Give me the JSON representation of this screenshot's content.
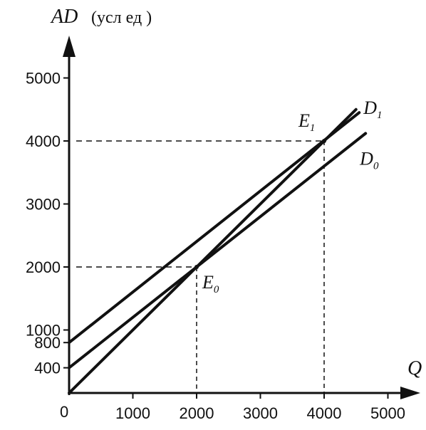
{
  "chart_data": {
    "type": "line",
    "y_axis": {
      "symbol": "AD",
      "unit": "(усл ед )"
    },
    "x_axis": {
      "symbol": "Q"
    },
    "origin_label": "0",
    "x_ticks": [
      1000,
      2000,
      3000,
      4000,
      5000
    ],
    "y_ticks": [
      400,
      800,
      1000,
      2000,
      3000,
      4000,
      5000
    ],
    "xlim": [
      0,
      5000
    ],
    "ylim": [
      0,
      5000
    ],
    "grid": false,
    "series": [
      {
        "name": "45° line",
        "x": [
          0,
          4500
        ],
        "y": [
          0,
          4500
        ]
      },
      {
        "name": "D₀",
        "label_main": "D",
        "label_sub": "0",
        "x": [
          0,
          4650
        ],
        "y": [
          400,
          4120
        ]
      },
      {
        "name": "D₁",
        "label_main": "D",
        "label_sub": "1",
        "x": [
          0,
          4550
        ],
        "y": [
          800,
          4450
        ]
      }
    ],
    "points": [
      {
        "label_main": "E",
        "label_sub": "0",
        "x": 2000,
        "y": 2000
      },
      {
        "label_main": "E",
        "label_sub": "1",
        "x": 4000,
        "y": 4000
      }
    ]
  }
}
